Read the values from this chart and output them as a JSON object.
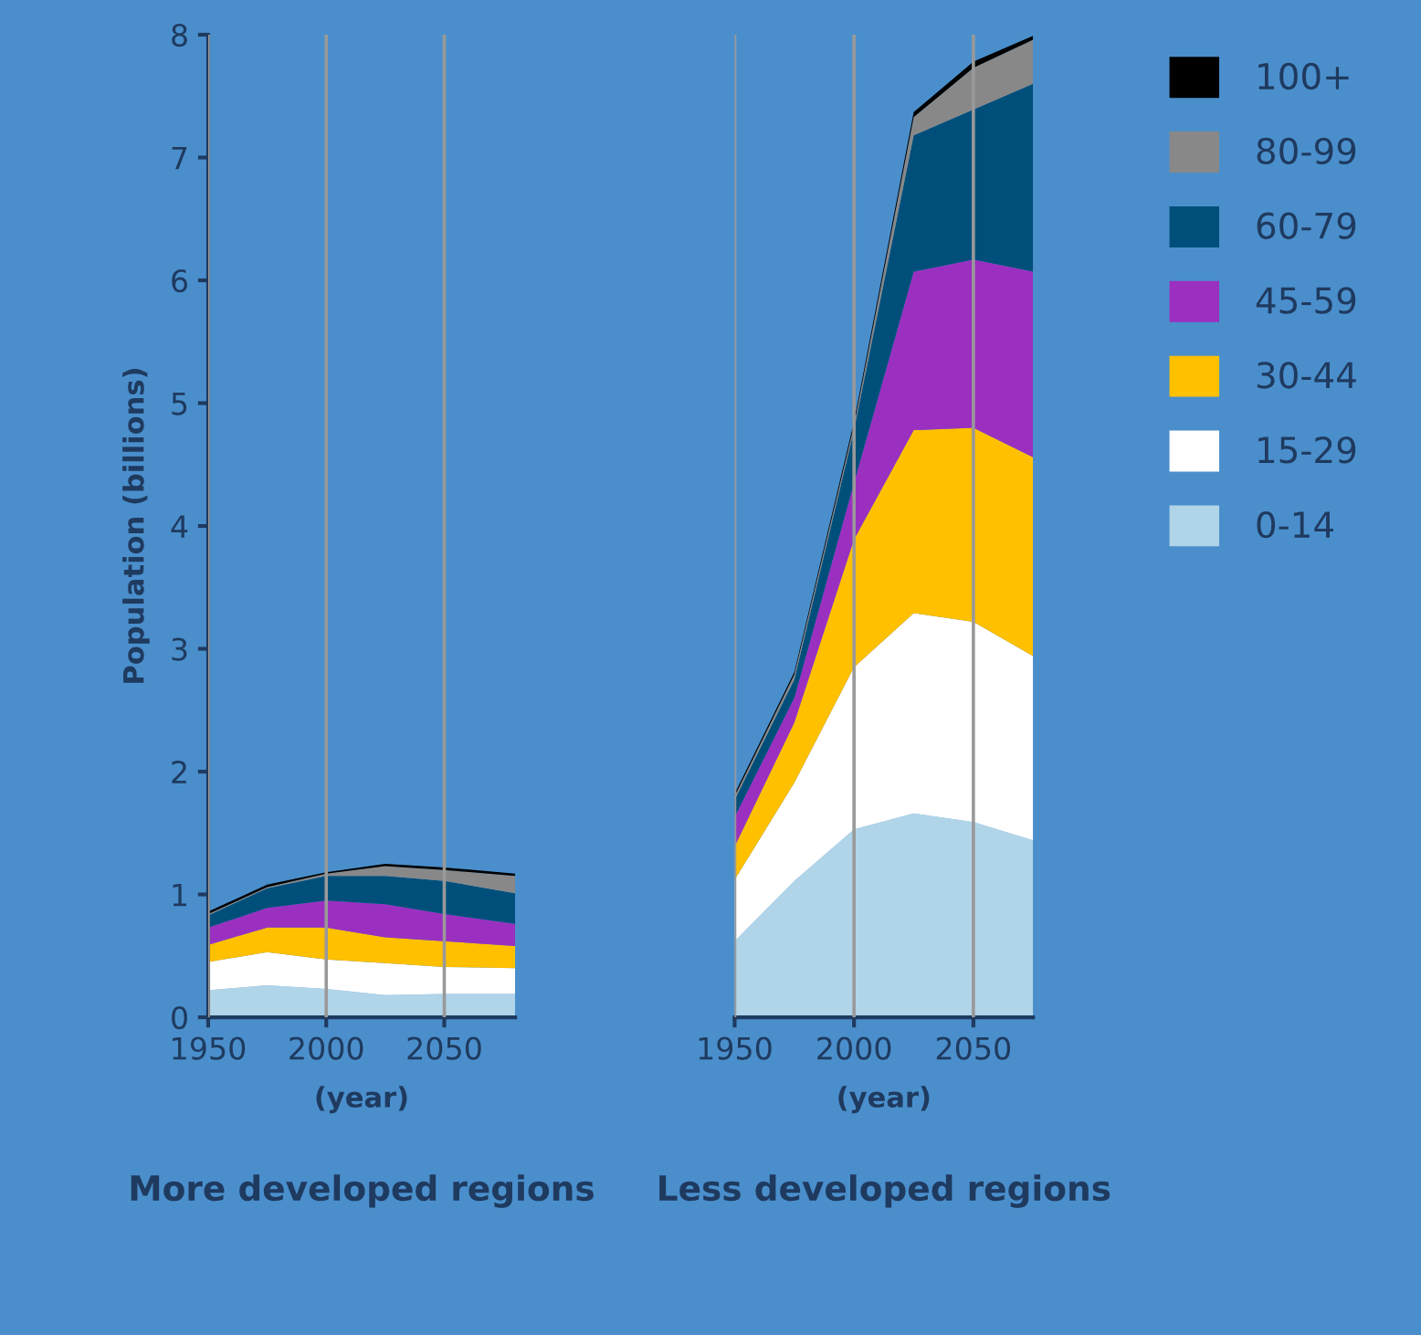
{
  "chart_data": [
    {
      "type": "area",
      "stacked": true,
      "title": "More developed regions",
      "xlabel": "(year)",
      "ylabel": "Population (billions)",
      "x": [
        1950,
        1975,
        2000,
        2025,
        2050,
        2080
      ],
      "xlim": [
        1950,
        2080
      ],
      "xticks": [
        1950,
        2000,
        2050
      ],
      "ylim": [
        0,
        8
      ],
      "yticks": [
        0,
        1,
        2,
        3,
        4,
        5,
        6,
        7,
        8
      ],
      "grid": "x",
      "series": [
        {
          "color": "#b0d4e8",
          "values": [
            0.22,
            0.26,
            0.23,
            0.18,
            0.19,
            0.19
          ]
        },
        {
          "color": "#ffffff",
          "values": [
            0.23,
            0.27,
            0.24,
            0.26,
            0.22,
            0.21
          ]
        },
        {
          "color": "#ffc000",
          "values": [
            0.14,
            0.2,
            0.26,
            0.21,
            0.21,
            0.18
          ]
        },
        {
          "color": "#9b30c0",
          "values": [
            0.14,
            0.16,
            0.22,
            0.27,
            0.22,
            0.18
          ]
        },
        {
          "color": "#004f7a",
          "values": [
            0.1,
            0.16,
            0.2,
            0.23,
            0.27,
            0.25
          ]
        },
        {
          "color": "#888888",
          "values": [
            0.01,
            0.01,
            0.02,
            0.08,
            0.09,
            0.14
          ]
        },
        {
          "color": "#000000",
          "values": [
            0.02,
            0.02,
            0.01,
            0.02,
            0.02,
            0.02
          ]
        }
      ]
    },
    {
      "type": "area",
      "stacked": true,
      "title": "Less developed regions",
      "xlabel": "(year)",
      "x": [
        1950,
        1975,
        2000,
        2025,
        2050,
        2075
      ],
      "xlim": [
        1950,
        2075
      ],
      "xticks": [
        1950,
        2000,
        2050
      ],
      "ylim": [
        0,
        8
      ],
      "tick_labels": "x",
      "grid": "x",
      "legend": "right",
      "series": [
        {
          "name": "0-14",
          "color": "#b0d4e8",
          "values": [
            0.62,
            1.11,
            1.53,
            1.66,
            1.59,
            1.44
          ]
        },
        {
          "name": "15-29",
          "color": "#ffffff",
          "values": [
            0.5,
            0.8,
            1.32,
            1.63,
            1.63,
            1.5
          ]
        },
        {
          "name": "30-44",
          "color": "#ffc000",
          "values": [
            0.27,
            0.49,
            1.04,
            1.49,
            1.58,
            1.62
          ]
        },
        {
          "name": "45-59",
          "color": "#9b30c0",
          "values": [
            0.24,
            0.2,
            0.46,
            1.29,
            1.37,
            1.51
          ]
        },
        {
          "name": "60-79",
          "color": "#004f7a",
          "values": [
            0.14,
            0.15,
            0.43,
            1.11,
            1.22,
            1.53
          ]
        },
        {
          "name": "80-99",
          "color": "#888888",
          "values": [
            0.03,
            0.04,
            0.04,
            0.15,
            0.34,
            0.36
          ]
        },
        {
          "name": "100+",
          "color": "#000000",
          "values": [
            0.02,
            0.02,
            0.03,
            0.04,
            0.05,
            0.03
          ]
        }
      ]
    }
  ]
}
